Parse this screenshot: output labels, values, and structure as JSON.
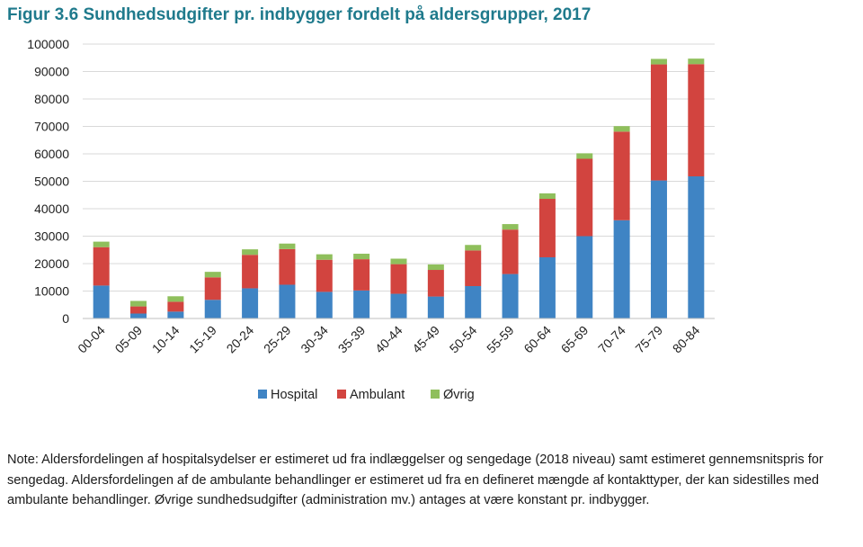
{
  "figure": {
    "title": "Figur 3.6 Sundhedsudgifter pr. indbygger fordelt på aldersgrupper, 2017",
    "note": "Note: Aldersfordelingen af hospitalsydelser er estimeret ud fra indlæggelser og sengedage (2018 niveau) samt estimeret gennemsnitspris for sengedag. Aldersfordelingen af de ambulante behandlinger er estimeret ud fra en defineret mængde af kontakttyper, der kan sidestilles med ambulante behandlinger. Øvrige sundhedsudgifter (administration mv.) antages at være konstant pr. indbygger."
  },
  "chart_data": {
    "type": "bar",
    "stacked": true,
    "title": "",
    "xlabel": "",
    "ylabel": "",
    "ylim": [
      0,
      100000
    ],
    "yticks": [
      0,
      10000,
      20000,
      30000,
      40000,
      50000,
      60000,
      70000,
      80000,
      90000,
      100000
    ],
    "grid": true,
    "legend_position": "bottom",
    "categories": [
      "00-04",
      "05-09",
      "10-14",
      "15-19",
      "20-24",
      "25-29",
      "30-34",
      "35-39",
      "40-44",
      "45-49",
      "50-54",
      "55-59",
      "60-64",
      "65-69",
      "70-74",
      "75-79",
      "80-84"
    ],
    "series": [
      {
        "name": "Hospital",
        "color": "#3f84c4",
        "values": [
          12000,
          1800,
          2500,
          6800,
          11000,
          12300,
          9700,
          10200,
          9000,
          8000,
          11800,
          16200,
          22300,
          30000,
          35800,
          50300,
          51800
        ]
      },
      {
        "name": "Ambulant",
        "color": "#d2443f",
        "values": [
          14000,
          2600,
          3600,
          8200,
          12200,
          13000,
          11700,
          11400,
          10800,
          9700,
          13000,
          16200,
          21300,
          28200,
          32300,
          42300,
          40900
        ]
      },
      {
        "name": "Øvrig",
        "color": "#8fbf5c",
        "values": [
          2000,
          2000,
          2000,
          2000,
          2000,
          2000,
          2000,
          2000,
          2000,
          2000,
          2000,
          2000,
          2000,
          2000,
          2000,
          2000,
          2000
        ]
      }
    ]
  }
}
